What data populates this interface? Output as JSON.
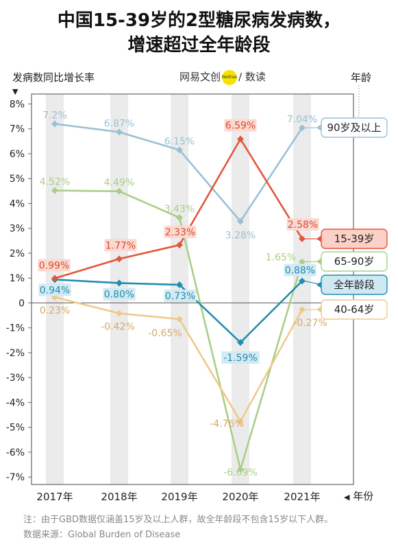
{
  "title": {
    "line1": "中国15-39岁的2型糖尿病发病数，",
    "line2": "增速超过全年龄段"
  },
  "brand": {
    "left": "网易",
    "mid": "文创",
    "logo_text": "NetEase",
    "right": "/ 数读"
  },
  "notes": {
    "note": "注：由于GBD数据仅涵盖15岁及以上人群，故全年龄段不包含15岁以下人群。",
    "source": "数据来源：Global Burden of Disease"
  },
  "colors": {
    "15-39岁": "#e4553a",
    "全年龄段": "#1f8eb0",
    "90岁及以上": "#9ac0d4",
    "65-90岁": "#a9cf86",
    "40-64岁": "#f0c98a",
    "band": "#ebebeb",
    "frame": "#666666"
  },
  "chart_data": {
    "type": "line",
    "title": "中国15-39岁的2型糖尿病发病数，增速超过全年龄段",
    "ylabel": "发病数同比增长率",
    "xlabel": "年份",
    "legend_title": "年龄",
    "legend_position": "right",
    "x": [
      "2017年",
      "2018年",
      "2019年",
      "2020年",
      "2021年"
    ],
    "ylim": [
      -7.3,
      8.4
    ],
    "yticks": [
      8,
      7,
      6,
      5,
      4,
      3,
      2,
      1,
      0,
      -1,
      -2,
      -3,
      -4,
      -5,
      -6,
      -7
    ],
    "ytick_labels": [
      "8%",
      "7%",
      "6%",
      "5%",
      "4%",
      "3%",
      "2%",
      "1%",
      "0",
      "-1%",
      "-2%",
      "-3%",
      "-4%",
      "-5%",
      "-6%",
      "-7%"
    ],
    "grid": false,
    "series": [
      {
        "name": "90岁及以上",
        "values": [
          7.2,
          6.87,
          6.15,
          3.28,
          7.04
        ],
        "labels": [
          "7.2%",
          "6.87%",
          "6.15%",
          "3.28%",
          "7.04%"
        ]
      },
      {
        "name": "65-90岁",
        "values": [
          4.52,
          4.49,
          3.43,
          -6.69,
          1.65
        ],
        "labels": [
          "4.52%",
          "4.49%",
          "3.43%",
          "-6.69%",
          "1.65%"
        ]
      },
      {
        "name": "15-39岁",
        "values": [
          0.99,
          1.77,
          2.33,
          6.59,
          2.58
        ],
        "labels": [
          "0.99%",
          "1.77%",
          "2.33%",
          "6.59%",
          "2.58%"
        ]
      },
      {
        "name": "全年龄段",
        "values": [
          0.94,
          0.8,
          0.73,
          -1.59,
          0.88
        ],
        "labels": [
          "0.94%",
          "0.80%",
          "0.73%",
          "-1.59%",
          "0.88%"
        ]
      },
      {
        "name": "40-64岁",
        "values": [
          0.23,
          -0.42,
          -0.65,
          -4.76,
          -0.27
        ],
        "labels": [
          "0.23%",
          "-0.42%",
          "-0.65%",
          "-4.76%",
          "-0.27%"
        ]
      }
    ]
  }
}
